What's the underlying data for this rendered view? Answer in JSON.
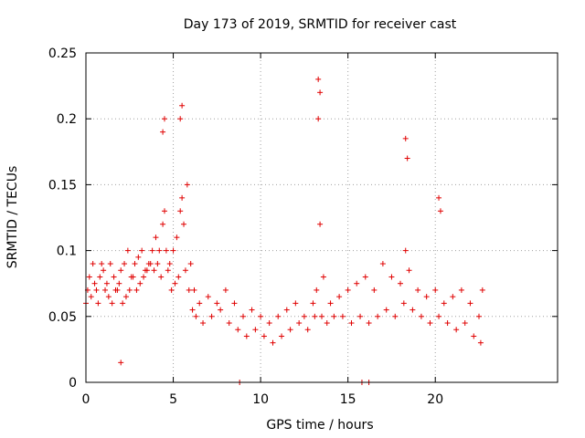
{
  "chart_data": {
    "type": "scatter",
    "title": "Day 173 of 2019, SRMTID for receiver cast",
    "xlabel": "GPS time / hours",
    "ylabel": "SRMTID / TECUs",
    "xlim": [
      0,
      27
    ],
    "ylim": [
      0,
      0.25
    ],
    "x_ticks": [
      "0",
      "5",
      "10",
      "15",
      "20"
    ],
    "x_tick_values": [
      0,
      5,
      10,
      15,
      20
    ],
    "y_ticks": [
      "0",
      "0.05",
      "0.1",
      "0.15",
      "0.2",
      "0.25"
    ],
    "y_tick_values": [
      0,
      0.05,
      0.1,
      0.15,
      0.2,
      0.25
    ],
    "grid": true,
    "marker": "+",
    "color": "#e00000",
    "series": [
      {
        "name": "SRMTID",
        "x": [
          0.0,
          0.2,
          0.4,
          0.6,
          0.8,
          1.0,
          1.2,
          1.4,
          1.6,
          1.8,
          2.0,
          2.2,
          2.4,
          2.6,
          2.8,
          3.0,
          3.2,
          3.4,
          3.6,
          3.8,
          4.0,
          4.2,
          4.4,
          4.5,
          4.6,
          4.8,
          5.0,
          5.2,
          5.4,
          5.5,
          5.6,
          5.8,
          6.0,
          6.2,
          6.5,
          7.0,
          7.5,
          8.0,
          8.5,
          9.0,
          9.5,
          10.0,
          10.5,
          11.0,
          11.5,
          12.0,
          12.5,
          13.0,
          13.2,
          13.4,
          13.6,
          14.0,
          14.5,
          15.0,
          15.5,
          16.0,
          16.5,
          17.0,
          17.5,
          18.0,
          18.3,
          18.5,
          19.0,
          19.5,
          20.0,
          20.5,
          21.0,
          21.5,
          22.0,
          22.5,
          22.7,
          0.1,
          0.3,
          0.5,
          0.7,
          0.9,
          1.1,
          1.3,
          1.5,
          1.7,
          1.9,
          2.1,
          2.3,
          2.5,
          2.7,
          2.9,
          3.1,
          3.3,
          3.5,
          3.7,
          3.9,
          4.1,
          4.3,
          4.7,
          4.9,
          5.1,
          5.3,
          5.7,
          5.9,
          6.1,
          6.3,
          6.7,
          7.2,
          7.7,
          8.2,
          8.7,
          9.2,
          9.7,
          10.2,
          10.7,
          11.2,
          11.7,
          12.2,
          12.7,
          13.1,
          13.5,
          13.8,
          14.2,
          14.7,
          15.2,
          15.7,
          16.2,
          16.7,
          17.2,
          17.7,
          18.2,
          18.7,
          19.2,
          19.7,
          20.2,
          20.7,
          21.2,
          21.7,
          22.2,
          22.6,
          4.4,
          4.5,
          5.4,
          5.5,
          13.3,
          13.4,
          13.3,
          18.3,
          18.4,
          20.2,
          20.3,
          8.8,
          15.8,
          16.2,
          2.0
        ],
        "y": [
          0.06,
          0.08,
          0.09,
          0.07,
          0.08,
          0.085,
          0.075,
          0.09,
          0.08,
          0.07,
          0.085,
          0.09,
          0.1,
          0.08,
          0.09,
          0.095,
          0.1,
          0.085,
          0.09,
          0.1,
          0.11,
          0.1,
          0.12,
          0.13,
          0.1,
          0.09,
          0.1,
          0.11,
          0.13,
          0.14,
          0.12,
          0.15,
          0.09,
          0.07,
          0.06,
          0.065,
          0.06,
          0.07,
          0.06,
          0.05,
          0.055,
          0.05,
          0.045,
          0.05,
          0.055,
          0.06,
          0.05,
          0.06,
          0.07,
          0.12,
          0.08,
          0.06,
          0.065,
          0.07,
          0.075,
          0.08,
          0.07,
          0.09,
          0.08,
          0.075,
          0.1,
          0.085,
          0.07,
          0.065,
          0.07,
          0.06,
          0.065,
          0.07,
          0.06,
          0.05,
          0.07,
          0.07,
          0.065,
          0.075,
          0.06,
          0.09,
          0.07,
          0.065,
          0.06,
          0.07,
          0.075,
          0.06,
          0.065,
          0.07,
          0.08,
          0.07,
          0.075,
          0.08,
          0.085,
          0.09,
          0.085,
          0.09,
          0.08,
          0.085,
          0.07,
          0.075,
          0.08,
          0.085,
          0.07,
          0.055,
          0.05,
          0.045,
          0.05,
          0.055,
          0.045,
          0.04,
          0.035,
          0.04,
          0.035,
          0.03,
          0.035,
          0.04,
          0.045,
          0.04,
          0.05,
          0.05,
          0.045,
          0.05,
          0.05,
          0.045,
          0.05,
          0.045,
          0.05,
          0.055,
          0.05,
          0.06,
          0.055,
          0.05,
          0.045,
          0.05,
          0.045,
          0.04,
          0.045,
          0.035,
          0.03,
          0.19,
          0.2,
          0.2,
          0.21,
          0.23,
          0.22,
          0.2,
          0.185,
          0.17,
          0.14,
          0.13,
          0.0,
          0.0,
          0.0,
          0.015
        ]
      }
    ]
  }
}
